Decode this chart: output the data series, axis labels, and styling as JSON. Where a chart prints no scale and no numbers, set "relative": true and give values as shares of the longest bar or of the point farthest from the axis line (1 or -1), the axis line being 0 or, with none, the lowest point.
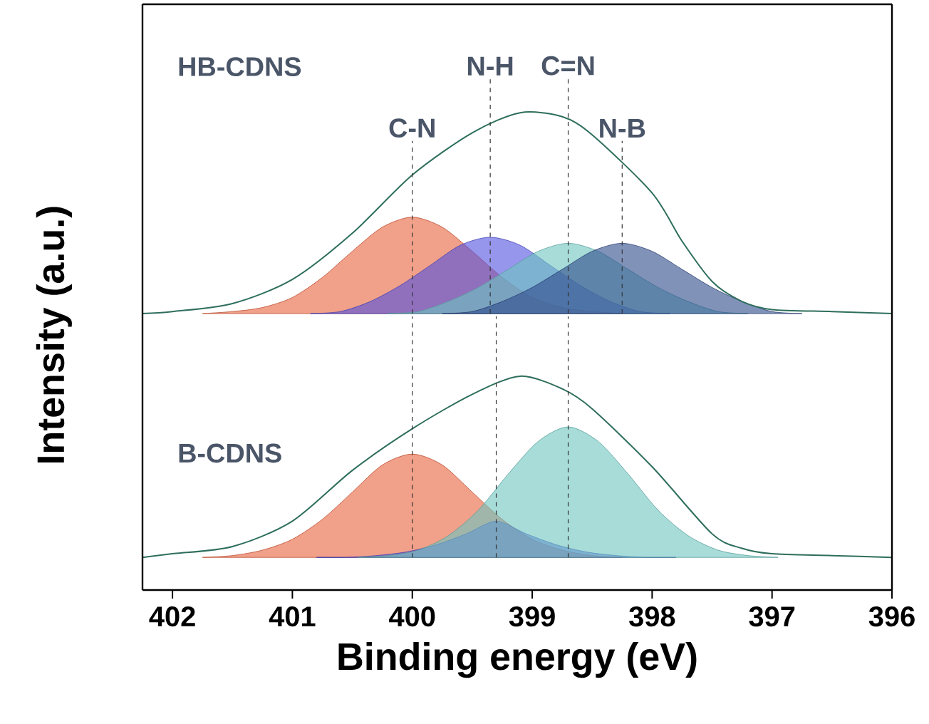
{
  "chart_data": [
    {
      "type": "area",
      "relative": true,
      "ylabel": "Intensity (a.u.)",
      "xlim": [
        402.25,
        396
      ],
      "tick_labels": false,
      "annotations": [
        "HB-CDNS"
      ],
      "ref_lines": [
        {
          "axis": "x",
          "value": 400.0,
          "label": "C-N",
          "color": "#333333",
          "line_style": "dashed"
        },
        {
          "axis": "x",
          "value": 399.35,
          "label": "N-H",
          "color": "#333333",
          "line_style": "dashed"
        },
        {
          "axis": "x",
          "value": 398.7,
          "label": "C=N",
          "color": "#333333",
          "line_style": "dashed"
        },
        {
          "axis": "x",
          "value": 398.25,
          "label": "N-B",
          "color": "#333333",
          "line_style": "dashed"
        }
      ],
      "series": [
        {
          "color": "#e8603c",
          "x": [
            401.75,
            401.5,
            401.25,
            401,
            400.75,
            400.5,
            400.25,
            400,
            399.75,
            399.5,
            399.25,
            399,
            398.75,
            398.5,
            398.25
          ],
          "values": [
            0,
            0.01,
            0.03,
            0.08,
            0.18,
            0.31,
            0.43,
            0.48,
            0.43,
            0.31,
            0.18,
            0.08,
            0.03,
            0.01,
            0
          ]
        },
        {
          "color": "#5050e0",
          "x": [
            400.85,
            400.6,
            400.35,
            400.1,
            399.85,
            399.6,
            399.35,
            399.1,
            398.85,
            398.6,
            398.35,
            398.1,
            397.85
          ],
          "values": [
            0,
            0.01,
            0.06,
            0.14,
            0.24,
            0.34,
            0.38,
            0.34,
            0.24,
            0.14,
            0.06,
            0.01,
            0
          ]
        },
        {
          "color": "#6cc5bf",
          "x": [
            400.2,
            399.95,
            399.7,
            399.45,
            399.2,
            398.95,
            398.7,
            398.45,
            398.2,
            397.95,
            397.7,
            397.45,
            397.2
          ],
          "values": [
            0,
            0.01,
            0.06,
            0.13,
            0.22,
            0.31,
            0.35,
            0.31,
            0.22,
            0.13,
            0.06,
            0.01,
            0
          ]
        },
        {
          "color": "#2d4a8a",
          "x": [
            399.75,
            399.5,
            399.25,
            399,
            398.75,
            398.5,
            398.25,
            398,
            397.75,
            397.5,
            397.25,
            397,
            396.75
          ],
          "values": [
            0,
            0.01,
            0.06,
            0.13,
            0.22,
            0.31,
            0.35,
            0.31,
            0.22,
            0.13,
            0.06,
            0.01,
            0
          ]
        },
        {
          "type": "line",
          "color": "#2e6e5c",
          "x": [
            402.25,
            402,
            401.5,
            401,
            400.5,
            400,
            399.5,
            399.1,
            398.75,
            398.5,
            398,
            397.75,
            397.5,
            397.25,
            397,
            396.5,
            396
          ],
          "values": [
            0,
            0.01,
            0.05,
            0.17,
            0.4,
            0.69,
            0.9,
            1.0,
            0.98,
            0.89,
            0.6,
            0.36,
            0.16,
            0.06,
            0.02,
            0.01,
            0
          ]
        }
      ]
    },
    {
      "type": "area",
      "relative": true,
      "xlabel": "Binding energy (eV)",
      "xlim": [
        402.25,
        396
      ],
      "tick_labels": "x",
      "xticks": [
        402,
        401,
        400,
        399,
        398,
        397,
        396
      ],
      "annotations": [
        "B-CDNS"
      ],
      "ref_lines": [
        {
          "axis": "x",
          "value": 400.0,
          "color": "#333333",
          "line_style": "dashed"
        },
        {
          "axis": "x",
          "value": 399.3,
          "color": "#333333",
          "line_style": "dashed"
        },
        {
          "axis": "x",
          "value": 398.7,
          "color": "#333333",
          "line_style": "dashed"
        }
      ],
      "series": [
        {
          "color": "#e8603c",
          "x": [
            401.75,
            401.5,
            401.25,
            401,
            400.75,
            400.5,
            400.25,
            400,
            399.75,
            399.5,
            399.25,
            399,
            398.75,
            398.5,
            398.25
          ],
          "values": [
            0,
            0.01,
            0.04,
            0.1,
            0.21,
            0.36,
            0.51,
            0.57,
            0.51,
            0.36,
            0.21,
            0.1,
            0.04,
            0.01,
            0
          ]
        },
        {
          "color": "#5050e0",
          "x": [
            400.8,
            400.55,
            400.3,
            400.05,
            399.8,
            399.55,
            399.3,
            399.05,
            398.8,
            398.55,
            398.3,
            398.05,
            397.8
          ],
          "values": [
            0,
            0,
            0.01,
            0.03,
            0.07,
            0.13,
            0.2,
            0.13,
            0.07,
            0.03,
            0.01,
            0,
            0
          ]
        },
        {
          "color": "#6cc5bf",
          "x": [
            400.45,
            400.2,
            399.95,
            399.7,
            399.45,
            399.2,
            398.95,
            398.7,
            398.45,
            398.2,
            397.95,
            397.7,
            397.45,
            397.2,
            396.95
          ],
          "values": [
            0,
            0.01,
            0.04,
            0.12,
            0.26,
            0.46,
            0.64,
            0.72,
            0.64,
            0.46,
            0.26,
            0.12,
            0.04,
            0.01,
            0
          ]
        },
        {
          "type": "line",
          "color": "#2e6e5c",
          "x": [
            402.25,
            402,
            401.5,
            401,
            400.5,
            400,
            399.5,
            399.1,
            398.75,
            398.5,
            398,
            397.5,
            397.25,
            397,
            396.5,
            396
          ],
          "values": [
            0,
            0.02,
            0.06,
            0.2,
            0.48,
            0.71,
            0.9,
            1.0,
            0.93,
            0.82,
            0.5,
            0.13,
            0.05,
            0.02,
            0.01,
            0
          ]
        }
      ]
    }
  ]
}
